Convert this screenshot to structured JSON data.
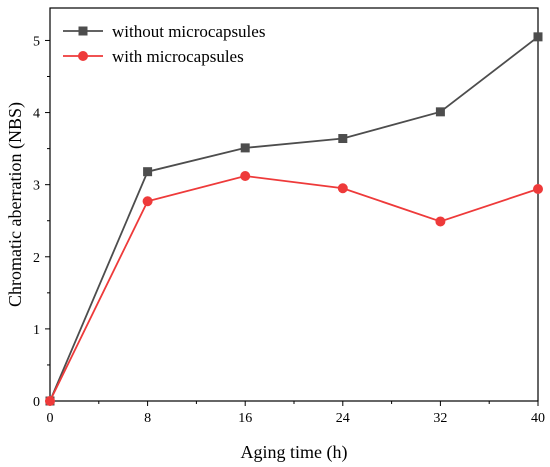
{
  "chart_data": {
    "type": "line",
    "xlabel": "Aging time (h)",
    "ylabel": "Chromatic aberration (NBS)",
    "x": [
      0,
      8,
      16,
      24,
      32,
      40
    ],
    "xticks": [
      0,
      8,
      16,
      24,
      32,
      40
    ],
    "yticks": [
      0,
      1,
      2,
      3,
      4,
      5
    ],
    "xlim": [
      0,
      40
    ],
    "ylim": [
      0,
      5.45
    ],
    "grid": false,
    "legend_position": "top-left",
    "series": [
      {
        "name": "without microcapsules",
        "values": [
          0,
          3.18,
          3.51,
          3.64,
          4.01,
          5.05
        ],
        "color": "#4d4d4d",
        "marker": "square"
      },
      {
        "name": "with microcapsules",
        "values": [
          0,
          2.77,
          3.12,
          2.95,
          2.49,
          2.94
        ],
        "color": "#ee3a3a",
        "marker": "circle"
      }
    ]
  }
}
